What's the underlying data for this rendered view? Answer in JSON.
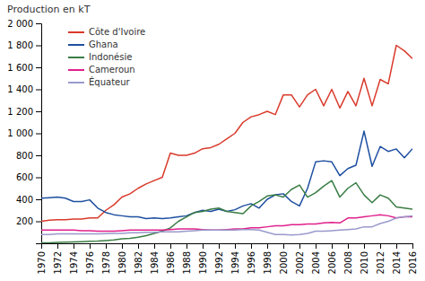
{
  "chart_data": {
    "type": "line",
    "y_label": "Production en kT",
    "x": [
      1970,
      1971,
      1972,
      1973,
      1974,
      1975,
      1976,
      1977,
      1978,
      1979,
      1980,
      1981,
      1982,
      1983,
      1984,
      1985,
      1986,
      1987,
      1988,
      1989,
      1990,
      1991,
      1992,
      1993,
      1994,
      1995,
      1996,
      1997,
      1998,
      1999,
      2000,
      2001,
      2002,
      2003,
      2004,
      2005,
      2006,
      2007,
      2008,
      2009,
      2010,
      2011,
      2012,
      2013,
      2014,
      2015,
      2016
    ],
    "series": [
      {
        "name": "Côte d'Ivoire",
        "color": "#d93a2b",
        "values": [
          200,
          210,
          215,
          215,
          220,
          220,
          230,
          230,
          300,
          350,
          420,
          450,
          500,
          540,
          570,
          600,
          820,
          800,
          800,
          820,
          860,
          870,
          900,
          950,
          1000,
          1100,
          1150,
          1170,
          1200,
          1170,
          1350,
          1350,
          1240,
          1350,
          1400,
          1250,
          1400,
          1230,
          1380,
          1250,
          1500,
          1250,
          1490,
          1450,
          1800,
          1750,
          1680
        ]
      },
      {
        "name": "Ghana",
        "color": "#1e4fa0",
        "values": [
          410,
          415,
          420,
          410,
          380,
          380,
          395,
          320,
          280,
          260,
          250,
          240,
          240,
          225,
          230,
          225,
          230,
          240,
          250,
          280,
          300,
          290,
          310,
          290,
          305,
          340,
          360,
          320,
          400,
          440,
          450,
          380,
          340,
          500,
          740,
          750,
          740,
          615,
          680,
          710,
          1020,
          700,
          880,
          835,
          858,
          778,
          860
        ]
      },
      {
        "name": "Indonésie",
        "color": "#3a7d44",
        "values": [
          5,
          5,
          8,
          10,
          12,
          15,
          18,
          20,
          25,
          30,
          40,
          45,
          55,
          70,
          90,
          110,
          140,
          200,
          240,
          280,
          290,
          310,
          320,
          290,
          280,
          270,
          340,
          380,
          430,
          440,
          420,
          490,
          530,
          420,
          460,
          520,
          570,
          420,
          500,
          550,
          440,
          370,
          440,
          410,
          330,
          320,
          310
        ]
      },
      {
        "name": "Cameroun",
        "color": "#e0208b",
        "values": [
          120,
          120,
          120,
          120,
          120,
          115,
          115,
          110,
          110,
          110,
          115,
          120,
          120,
          120,
          120,
          120,
          125,
          130,
          130,
          130,
          125,
          120,
          120,
          125,
          130,
          130,
          140,
          140,
          150,
          160,
          160,
          170,
          170,
          175,
          175,
          185,
          190,
          185,
          230,
          230,
          240,
          250,
          260,
          250,
          230,
          240,
          240
        ]
      },
      {
        "name": "Équateur",
        "color": "#9999cc",
        "values": [
          80,
          80,
          85,
          85,
          85,
          85,
          85,
          85,
          88,
          90,
          90,
          95,
          95,
          100,
          100,
          105,
          105,
          105,
          110,
          115,
          120,
          120,
          120,
          120,
          120,
          125,
          125,
          120,
          100,
          80,
          80,
          75,
          80,
          90,
          110,
          110,
          115,
          120,
          125,
          130,
          150,
          150,
          180,
          200,
          230,
          240,
          250
        ]
      }
    ],
    "xlim": [
      1970,
      2016
    ],
    "xticks": [
      1970,
      1972,
      1974,
      1976,
      1978,
      1980,
      1982,
      1984,
      1986,
      1988,
      1990,
      1992,
      1994,
      1996,
      1998,
      2000,
      2002,
      2004,
      2006,
      2008,
      2010,
      2012,
      2014,
      2016
    ],
    "ylim": [
      0,
      2000
    ],
    "yticks": [
      200,
      400,
      600,
      800,
      {
        "value": 1000,
        "label": "1 000"
      },
      {
        "value": 1200,
        "label": "1 200"
      },
      {
        "value": 1400,
        "label": "1 400"
      },
      {
        "value": 1600,
        "label": "1 600"
      },
      {
        "value": 1800,
        "label": "1 800"
      },
      {
        "value": 2000,
        "label": "2 000"
      }
    ],
    "grid": false,
    "legend": "upper left"
  }
}
